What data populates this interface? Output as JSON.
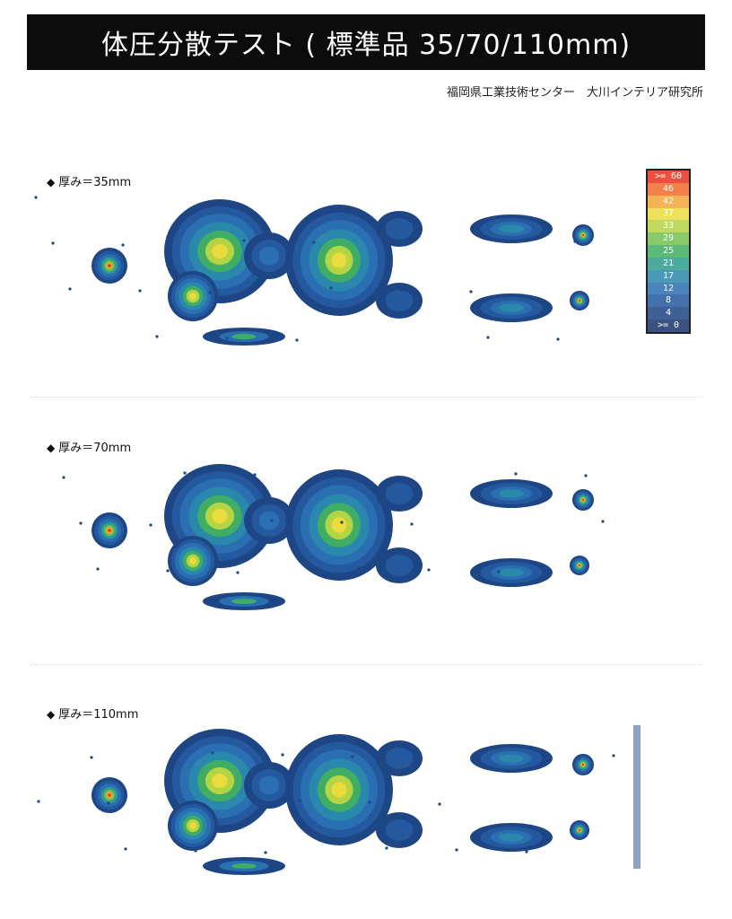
{
  "header": {
    "title": "体圧分散テスト ( 標準品 35/70/110mm)",
    "source": "福岡県工業技術センター　大川インテリア研究所"
  },
  "sections": [
    {
      "label": "厚み＝35mm"
    },
    {
      "label": "厚み＝70mm"
    },
    {
      "label": "厚み＝110mm"
    }
  ],
  "legend": {
    "items": [
      {
        "label": ">= 60",
        "color": "#e8321e"
      },
      {
        "label": "46",
        "color": "#ef6a2a"
      },
      {
        "label": "42",
        "color": "#f3a637"
      },
      {
        "label": "37",
        "color": "#eadb3f"
      },
      {
        "label": "33",
        "color": "#b4d444"
      },
      {
        "label": "29",
        "color": "#74c04f"
      },
      {
        "label": "25",
        "color": "#3fae64"
      },
      {
        "label": "21",
        "color": "#2f9d8d"
      },
      {
        "label": "17",
        "color": "#2b88ad"
      },
      {
        "label": "12",
        "color": "#2a6fb2"
      },
      {
        "label": "8",
        "color": "#24589f"
      },
      {
        "label": "4",
        "color": "#1e4584"
      },
      {
        "label": ">= 0",
        "color": "#1a356b"
      }
    ]
  }
}
